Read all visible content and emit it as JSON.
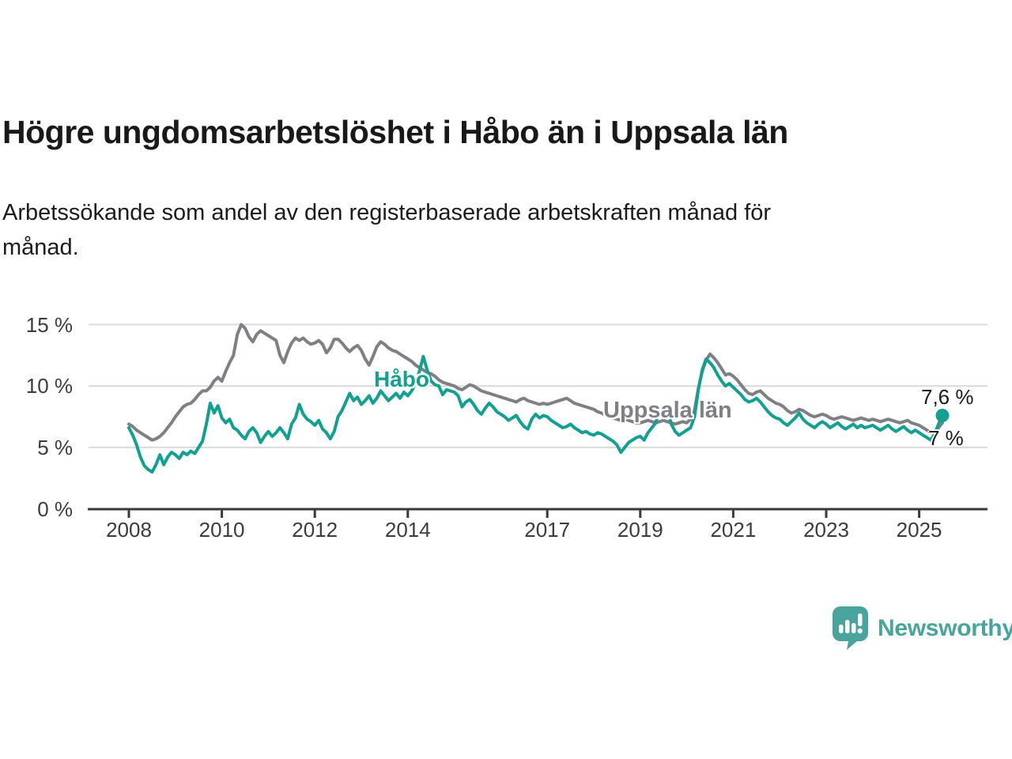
{
  "title": "Högre ungdomsarbetslöshet i Håbo än i Uppsala län",
  "subtitle_lines": [
    "Arbetssökande som andel av den registerbaserade arbetskraften månad för",
    "månad."
  ],
  "branding": {
    "name": "Newsworthy",
    "color": "#48a49d"
  },
  "axis_colors": {
    "gridline": "#d9d9d9",
    "axis_line": "#3a3a3a",
    "tick_label": "#3c3c3c"
  },
  "chart_data": {
    "type": "line",
    "unit": "%",
    "frequency": "monthly",
    "x_start": {
      "year": 2008,
      "month": 1
    },
    "x_end": {
      "year": 2025,
      "month": 7
    },
    "ylim": [
      0,
      16
    ],
    "grid": "horizontal",
    "legend_position": "inline-labels",
    "yticks": [
      {
        "value": 0,
        "label": "0 %"
      },
      {
        "value": 5,
        "label": "5 %"
      },
      {
        "value": 10,
        "label": "10 %"
      },
      {
        "value": 15,
        "label": "15 %"
      }
    ],
    "xticks": [
      {
        "year": 2008,
        "label": "2008"
      },
      {
        "year": 2010,
        "label": "2010"
      },
      {
        "year": 2012,
        "label": "2012"
      },
      {
        "year": 2014,
        "label": "2014"
      },
      {
        "year": 2017,
        "label": "2017"
      },
      {
        "year": 2019,
        "label": "2019"
      },
      {
        "year": 2021,
        "label": "2021"
      },
      {
        "year": 2023,
        "label": "2023"
      },
      {
        "year": 2025,
        "label": "2025"
      }
    ],
    "series": [
      {
        "name": "Håbo",
        "color": "#12a191",
        "end_label": "7,6 %",
        "end_dot": true,
        "values": [
          6.6,
          6.0,
          5.2,
          4.2,
          3.5,
          3.2,
          3.0,
          3.6,
          4.4,
          3.6,
          4.2,
          4.6,
          4.4,
          4.1,
          4.6,
          4.4,
          4.7,
          4.5,
          5.0,
          5.5,
          6.9,
          8.6,
          7.8,
          8.4,
          7.4,
          7.0,
          7.3,
          6.6,
          6.4,
          6.0,
          5.7,
          6.3,
          6.6,
          6.2,
          5.4,
          5.9,
          6.3,
          5.9,
          6.2,
          6.6,
          6.2,
          5.7,
          6.9,
          7.4,
          8.5,
          7.7,
          7.3,
          7.1,
          6.8,
          7.2,
          6.5,
          6.2,
          5.7,
          6.3,
          7.5,
          8.0,
          8.7,
          9.4,
          8.8,
          9.1,
          8.5,
          8.8,
          9.2,
          8.6,
          9.0,
          9.6,
          9.2,
          8.8,
          9.1,
          9.4,
          9.0,
          9.5,
          9.2,
          9.6,
          10.2,
          11.2,
          12.4,
          11.3,
          10.4,
          10.1,
          10.0,
          9.3,
          9.7,
          9.6,
          9.5,
          9.2,
          8.3,
          8.7,
          8.9,
          8.5,
          8.0,
          7.7,
          8.2,
          8.6,
          8.3,
          7.9,
          7.7,
          7.5,
          7.2,
          7.4,
          7.6,
          7.1,
          6.7,
          6.5,
          7.3,
          7.7,
          7.4,
          7.6,
          7.5,
          7.2,
          7.0,
          6.8,
          6.6,
          6.7,
          6.9,
          6.6,
          6.4,
          6.2,
          6.3,
          6.1,
          6.0,
          6.2,
          6.1,
          5.9,
          5.7,
          5.5,
          5.2,
          4.6,
          5.0,
          5.4,
          5.6,
          5.8,
          5.9,
          5.6,
          6.2,
          6.6,
          7.0,
          8.2,
          7.8,
          8.3,
          6.9,
          6.3,
          6.0,
          6.2,
          6.4,
          6.6,
          7.5,
          9.7,
          11.3,
          12.2,
          11.9,
          11.5,
          10.9,
          10.4,
          10.0,
          10.2,
          9.9,
          9.6,
          9.3,
          8.9,
          8.7,
          8.8,
          9.0,
          8.7,
          8.3,
          7.9,
          7.6,
          7.4,
          7.3,
          7.0,
          6.8,
          7.1,
          7.4,
          7.8,
          7.3,
          7.0,
          6.8,
          6.6,
          6.9,
          7.1,
          6.9,
          6.6,
          6.8,
          7.0,
          6.7,
          6.5,
          6.7,
          6.9,
          6.6,
          6.8,
          6.6,
          6.7,
          6.8,
          6.6,
          6.4,
          6.6,
          6.8,
          6.5,
          6.3,
          6.5,
          6.7,
          6.4,
          6.2,
          6.4,
          6.2,
          6.0,
          5.8,
          5.6,
          6.1,
          6.9,
          7.6
        ]
      },
      {
        "name": "Uppsala län",
        "color": "#7e8085",
        "end_label": "7 %",
        "end_dot": false,
        "values": [
          6.9,
          6.7,
          6.4,
          6.2,
          6.0,
          5.8,
          5.6,
          5.7,
          5.9,
          6.2,
          6.6,
          7.0,
          7.5,
          7.9,
          8.3,
          8.5,
          8.6,
          8.9,
          9.3,
          9.6,
          9.6,
          9.9,
          10.4,
          10.7,
          10.4,
          11.2,
          11.9,
          12.5,
          14.2,
          15.0,
          14.7,
          14.0,
          13.6,
          14.2,
          14.5,
          14.3,
          14.1,
          13.9,
          13.7,
          12.5,
          11.9,
          12.8,
          13.5,
          13.9,
          13.7,
          13.9,
          13.6,
          13.4,
          13.5,
          13.7,
          13.4,
          12.7,
          13.1,
          13.8,
          13.8,
          13.5,
          13.1,
          12.8,
          13.1,
          13.3,
          12.9,
          12.2,
          11.7,
          12.4,
          13.2,
          13.6,
          13.4,
          13.1,
          12.9,
          12.8,
          12.6,
          12.4,
          12.2,
          12.0,
          11.7,
          11.5,
          11.3,
          11.1,
          11.0,
          10.8,
          10.5,
          10.3,
          10.2,
          10.1,
          10.0,
          9.8,
          9.7,
          9.9,
          10.1,
          10.0,
          9.8,
          9.6,
          9.5,
          9.4,
          9.3,
          9.2,
          9.1,
          9.0,
          8.9,
          8.8,
          8.7,
          8.9,
          9.0,
          8.8,
          8.7,
          8.6,
          8.5,
          8.6,
          8.5,
          8.6,
          8.7,
          8.8,
          8.9,
          9.0,
          8.8,
          8.6,
          8.5,
          8.4,
          8.3,
          8.2,
          8.1,
          7.9,
          7.8,
          7.6,
          7.5,
          7.4,
          7.3,
          7.2,
          7.3,
          7.2,
          7.1,
          7.0,
          7.0,
          7.1,
          7.2,
          7.1,
          7.0,
          7.1,
          7.2,
          7.1,
          7.0,
          6.9,
          7.0,
          7.1,
          7.0,
          7.3,
          8.0,
          9.8,
          11.2,
          12.1,
          12.6,
          12.3,
          11.9,
          11.4,
          10.9,
          11.0,
          10.8,
          10.5,
          10.1,
          9.7,
          9.4,
          9.3,
          9.5,
          9.6,
          9.3,
          9.0,
          8.8,
          8.6,
          8.5,
          8.3,
          8.0,
          7.8,
          7.9,
          8.1,
          8.0,
          7.8,
          7.6,
          7.5,
          7.6,
          7.7,
          7.6,
          7.4,
          7.3,
          7.4,
          7.5,
          7.4,
          7.3,
          7.2,
          7.3,
          7.4,
          7.3,
          7.2,
          7.3,
          7.2,
          7.1,
          7.2,
          7.3,
          7.2,
          7.1,
          7.0,
          7.1,
          7.2,
          7.0,
          6.9,
          6.8,
          6.6,
          6.4,
          6.2,
          6.3,
          6.6,
          7.0
        ]
      }
    ]
  }
}
